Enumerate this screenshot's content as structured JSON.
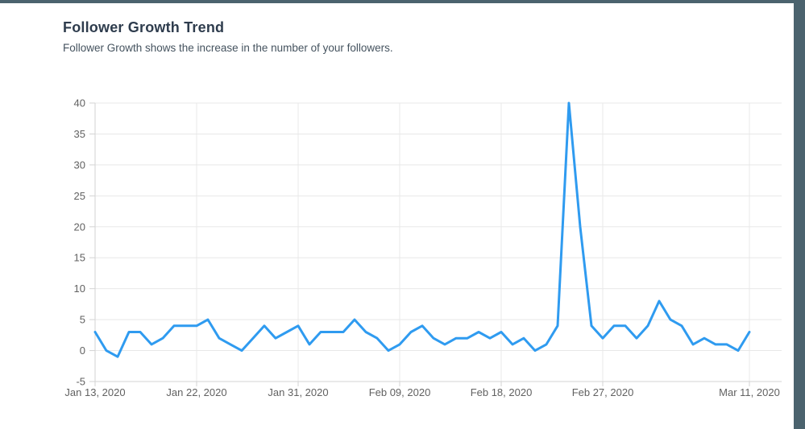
{
  "page": {
    "title": "Follower Growth Trend",
    "subtitle": "Follower Growth shows the increase in the number of your followers."
  },
  "colors": {
    "frame": "#4b636e",
    "line": "#2f9bf0",
    "grid": "#e8e8e8",
    "axis": "#d3d3d3",
    "tick_label": "#616161",
    "title": "#2e3c4d",
    "subtitle": "#45535f"
  },
  "chart_data": {
    "type": "line",
    "title": "Follower Growth Trend",
    "series_name": "Follower Growth",
    "x": [
      "2020-01-13",
      "2020-01-14",
      "2020-01-15",
      "2020-01-16",
      "2020-01-17",
      "2020-01-18",
      "2020-01-19",
      "2020-01-20",
      "2020-01-21",
      "2020-01-22",
      "2020-01-23",
      "2020-01-24",
      "2020-01-25",
      "2020-01-26",
      "2020-01-27",
      "2020-01-28",
      "2020-01-29",
      "2020-01-30",
      "2020-01-31",
      "2020-02-01",
      "2020-02-02",
      "2020-02-03",
      "2020-02-04",
      "2020-02-05",
      "2020-02-06",
      "2020-02-07",
      "2020-02-08",
      "2020-02-09",
      "2020-02-10",
      "2020-02-11",
      "2020-02-12",
      "2020-02-13",
      "2020-02-14",
      "2020-02-15",
      "2020-02-16",
      "2020-02-17",
      "2020-02-18",
      "2020-02-19",
      "2020-02-20",
      "2020-02-21",
      "2020-02-22",
      "2020-02-23",
      "2020-02-24",
      "2020-02-25",
      "2020-02-26",
      "2020-02-27",
      "2020-02-28",
      "2020-02-29",
      "2020-03-01",
      "2020-03-02",
      "2020-03-03",
      "2020-03-04",
      "2020-03-05",
      "2020-03-06",
      "2020-03-07",
      "2020-03-08",
      "2020-03-09",
      "2020-03-10",
      "2020-03-11"
    ],
    "values": [
      3,
      0,
      -1,
      3,
      3,
      1,
      2,
      4,
      4,
      4,
      5,
      2,
      1,
      0,
      2,
      4,
      2,
      3,
      4,
      1,
      3,
      3,
      3,
      5,
      3,
      2,
      0,
      1,
      3,
      4,
      2,
      1,
      2,
      2,
      3,
      2,
      3,
      1,
      2,
      0,
      1,
      4,
      40,
      20,
      4,
      2,
      4,
      4,
      2,
      4,
      8,
      5,
      4,
      1,
      2,
      1,
      1,
      0,
      3
    ],
    "x_tick_labels": [
      "Jan 13, 2020",
      "Jan 22, 2020",
      "Jan 31, 2020",
      "Feb 09, 2020",
      "Feb 18, 2020",
      "Feb 27, 2020",
      "Mar 11, 2020"
    ],
    "x_tick_indices": [
      0,
      9,
      18,
      27,
      36,
      45,
      58
    ],
    "y_ticks": [
      40,
      35,
      30,
      25,
      20,
      15,
      10,
      5,
      0,
      -5
    ],
    "ylim": [
      -5,
      40
    ],
    "xlabel": "",
    "ylabel": "",
    "grid": true,
    "legend": false
  }
}
